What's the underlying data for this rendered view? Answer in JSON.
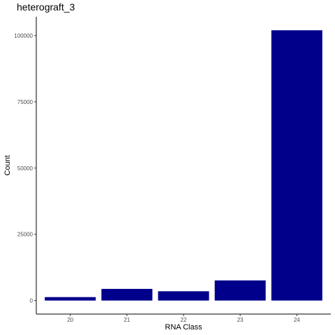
{
  "chart_data": {
    "type": "bar",
    "title": "heterograft_3",
    "xlabel": "RNA Class",
    "ylabel": "Count",
    "categories": [
      "20",
      "21",
      "22",
      "23",
      "24"
    ],
    "values": [
      1300,
      4400,
      3500,
      7600,
      102000
    ],
    "ylim": [
      -5100,
      107100
    ],
    "yticks": [
      0,
      25000,
      50000,
      75000,
      100000
    ],
    "ytick_labels": [
      "0",
      "25000",
      "50000",
      "75000",
      "100000"
    ],
    "bar_color": "#00008b",
    "grid": false,
    "legend": "none"
  }
}
